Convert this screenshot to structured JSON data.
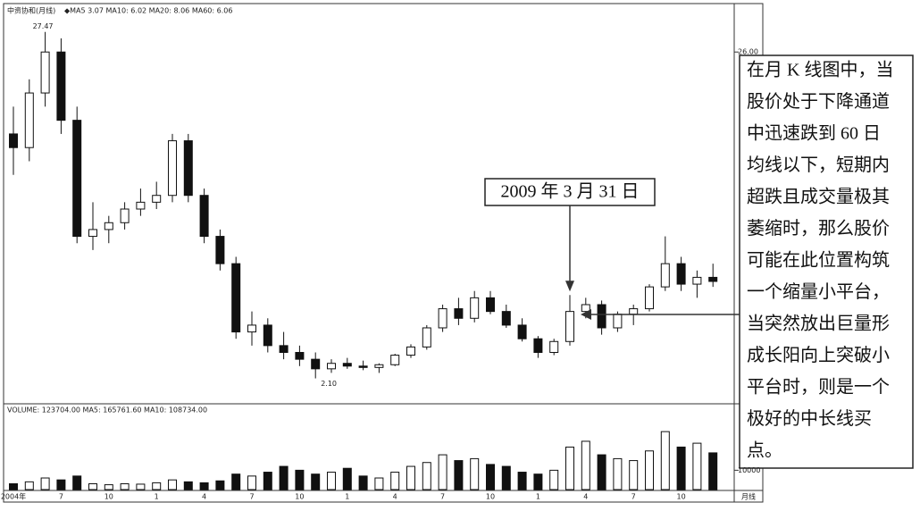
{
  "chart_data": {
    "type": "candlestick",
    "title": "中资协和(月线)",
    "indicators": "◆MA5 3.07 MA10: 6.02 MA20: 8.06 MA60: 6.06",
    "volume_title": "VOLUME: 123704.00 MA5: 165761.60 MA10: 108734.00",
    "period_label": "月线",
    "categories": [
      "2004年",
      null,
      null,
      "7",
      null,
      null,
      "10",
      null,
      null,
      "1",
      null,
      null,
      "4",
      null,
      null,
      "7",
      null,
      null,
      "10",
      null,
      null,
      "1",
      null,
      null,
      "4",
      null,
      null,
      "7",
      null,
      null,
      "10",
      null,
      null,
      "1",
      null,
      null,
      "4",
      null,
      null,
      "7",
      null,
      null,
      "10",
      null,
      null
    ],
    "open": [
      20,
      19,
      23,
      26,
      21,
      12.5,
      13,
      13.5,
      14.5,
      15,
      15.5,
      19.5,
      15.5,
      12.5,
      10.5,
      5.5,
      6,
      4.5,
      4,
      3.5,
      2.8,
      3.2,
      3,
      2.9,
      3.1,
      3.8,
      4.4,
      5.8,
      7.2,
      6.5,
      8,
      7,
      6,
      5,
      4,
      4.8,
      7,
      7.5,
      5.8,
      6.8,
      7.2,
      8.8,
      10.5,
      9,
      9.5
    ],
    "high": [
      22,
      24,
      27.47,
      27,
      22,
      15,
      14,
      15,
      16,
      16.5,
      20,
      20,
      16,
      13,
      11,
      7,
      6.5,
      5.5,
      4.5,
      4,
      3.5,
      3.6,
      3.4,
      3.2,
      3.9,
      4.6,
      6,
      7.5,
      8,
      8.5,
      8.5,
      7.5,
      6.5,
      5.2,
      5,
      8.2,
      8,
      7.8,
      7,
      7.5,
      9,
      12.5,
      11,
      10,
      10.5
    ],
    "low": [
      17,
      18,
      22,
      20,
      12,
      11.5,
      12,
      13,
      14,
      14.5,
      15,
      15,
      12,
      10,
      5,
      4.5,
      4,
      3.5,
      3,
      2.1,
      2.5,
      2.8,
      2.7,
      2.5,
      3,
      3.6,
      4.2,
      5.5,
      6,
      6.2,
      6.8,
      5.8,
      4.8,
      3.6,
      3.8,
      4.5,
      6.5,
      5.3,
      5.5,
      6,
      7,
      8.5,
      8.5,
      8,
      8.8
    ],
    "close": [
      19,
      23,
      26,
      21,
      12.5,
      13,
      13.5,
      14.5,
      15,
      15.5,
      19.5,
      15.5,
      12.5,
      10.5,
      5.5,
      6,
      4.5,
      4,
      3.5,
      2.8,
      3.2,
      3,
      2.9,
      3.1,
      3.8,
      4.4,
      5.8,
      7.2,
      6.5,
      8,
      7,
      6,
      5,
      4,
      4.8,
      7,
      7.5,
      5.8,
      6.8,
      7.2,
      8.8,
      10.5,
      9,
      9.5,
      9.2
    ],
    "volume": [
      3000,
      4000,
      6000,
      5000,
      7000,
      3000,
      2500,
      3000,
      2800,
      3500,
      5000,
      4000,
      3500,
      4500,
      8000,
      7000,
      9000,
      12000,
      10000,
      8000,
      9000,
      11000,
      7000,
      6000,
      9000,
      12000,
      14000,
      18000,
      15000,
      16000,
      13000,
      12000,
      9000,
      8000,
      10000,
      22000,
      25000,
      18000,
      16000,
      15000,
      20000,
      30000,
      22000,
      24000,
      19000
    ],
    "ylim": [
      0.5,
      28.5
    ],
    "yticks": [
      {
        "value": 26,
        "label": "26.00"
      }
    ],
    "vlim": [
      0,
      37000
    ],
    "vticks": [
      10000
    ],
    "low_label": "2.10",
    "annotations": {
      "date": "2009 年 3 月 31 日",
      "target": 35,
      "note_lines": [
        "在月 K 线图中，当",
        "股价处于下降通道",
        "中迅速跌到 60 日",
        "均线以下，短期内",
        "超跌且成交量极其",
        "萎缩时，那么股价",
        "可能在此位置构筑",
        "一个缩量小平台，",
        "当突然放出巨量形",
        "成长阳向上突破小",
        "平台时，则是一个",
        "极好的中长线买",
        "点。"
      ]
    }
  }
}
